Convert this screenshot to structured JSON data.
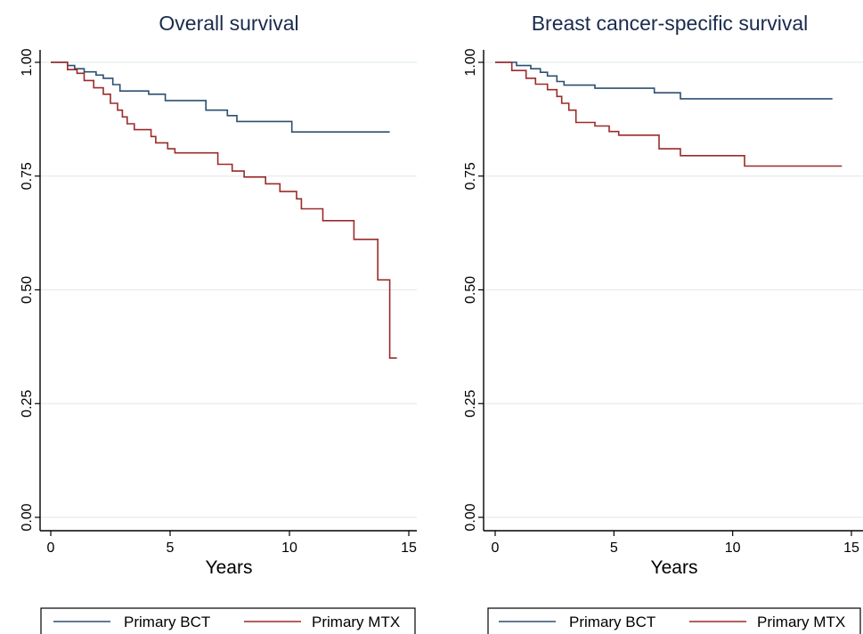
{
  "chart_data": [
    {
      "type": "line",
      "title": "Overall survival",
      "xlabel": "Years",
      "ylabel": "",
      "xlim": [
        0,
        15
      ],
      "ylim": [
        0,
        1
      ],
      "x_ticks": [
        "0",
        "5",
        "10",
        "15"
      ],
      "y_ticks": [
        "0.00",
        "0.25",
        "0.50",
        "0.75",
        "1.00"
      ],
      "grid": true,
      "legend_position": "bottom",
      "series": [
        {
          "name": "Primary BCT",
          "color": "#2c4f70",
          "points": [
            [
              0,
              1.0
            ],
            [
              0.7,
              1.0
            ],
            [
              0.7,
              0.993
            ],
            [
              1.0,
              0.993
            ],
            [
              1.0,
              0.986
            ],
            [
              1.4,
              0.986
            ],
            [
              1.4,
              0.979
            ],
            [
              1.9,
              0.979
            ],
            [
              1.9,
              0.972
            ],
            [
              2.2,
              0.972
            ],
            [
              2.2,
              0.965
            ],
            [
              2.6,
              0.965
            ],
            [
              2.6,
              0.951
            ],
            [
              2.9,
              0.951
            ],
            [
              2.9,
              0.937
            ],
            [
              4.1,
              0.937
            ],
            [
              4.1,
              0.93
            ],
            [
              4.8,
              0.93
            ],
            [
              4.8,
              0.916
            ],
            [
              6.5,
              0.916
            ],
            [
              6.5,
              0.895
            ],
            [
              7.4,
              0.895
            ],
            [
              7.4,
              0.883
            ],
            [
              7.8,
              0.883
            ],
            [
              7.8,
              0.87
            ],
            [
              10.1,
              0.87
            ],
            [
              10.1,
              0.847
            ],
            [
              14.2,
              0.847
            ]
          ]
        },
        {
          "name": "Primary MTX",
          "color": "#9c2a2a",
          "points": [
            [
              0,
              1.0
            ],
            [
              0.7,
              1.0
            ],
            [
              0.7,
              0.984
            ],
            [
              1.1,
              0.984
            ],
            [
              1.1,
              0.976
            ],
            [
              1.4,
              0.976
            ],
            [
              1.4,
              0.96
            ],
            [
              1.8,
              0.96
            ],
            [
              1.8,
              0.944
            ],
            [
              2.2,
              0.944
            ],
            [
              2.2,
              0.93
            ],
            [
              2.5,
              0.93
            ],
            [
              2.5,
              0.91
            ],
            [
              2.8,
              0.91
            ],
            [
              2.8,
              0.895
            ],
            [
              3.0,
              0.895
            ],
            [
              3.0,
              0.88
            ],
            [
              3.2,
              0.88
            ],
            [
              3.2,
              0.865
            ],
            [
              3.5,
              0.865
            ],
            [
              3.5,
              0.852
            ],
            [
              4.2,
              0.852
            ],
            [
              4.2,
              0.837
            ],
            [
              4.4,
              0.837
            ],
            [
              4.4,
              0.823
            ],
            [
              4.9,
              0.823
            ],
            [
              4.9,
              0.81
            ],
            [
              5.2,
              0.81
            ],
            [
              5.2,
              0.801
            ],
            [
              7.0,
              0.801
            ],
            [
              7.0,
              0.776
            ],
            [
              7.6,
              0.776
            ],
            [
              7.6,
              0.761
            ],
            [
              8.1,
              0.761
            ],
            [
              8.1,
              0.748
            ],
            [
              9.0,
              0.748
            ],
            [
              9.0,
              0.733
            ],
            [
              9.6,
              0.733
            ],
            [
              9.6,
              0.716
            ],
            [
              10.3,
              0.716
            ],
            [
              10.3,
              0.7
            ],
            [
              10.5,
              0.7
            ],
            [
              10.5,
              0.678
            ],
            [
              11.4,
              0.678
            ],
            [
              11.4,
              0.652
            ],
            [
              12.7,
              0.652
            ],
            [
              12.7,
              0.611
            ],
            [
              13.7,
              0.611
            ],
            [
              13.7,
              0.522
            ],
            [
              14.2,
              0.522
            ],
            [
              14.2,
              0.35
            ],
            [
              14.5,
              0.35
            ]
          ]
        }
      ]
    },
    {
      "type": "line",
      "title": "Breast cancer-specific survival",
      "xlabel": "Years",
      "ylabel": "",
      "xlim": [
        0,
        15
      ],
      "ylim": [
        0,
        1
      ],
      "x_ticks": [
        "0",
        "5",
        "10",
        "15"
      ],
      "y_ticks": [
        "0.00",
        "0.25",
        "0.50",
        "0.75",
        "1.00"
      ],
      "grid": true,
      "legend_position": "bottom",
      "series": [
        {
          "name": "Primary BCT",
          "color": "#2c4f70",
          "points": [
            [
              0,
              1.0
            ],
            [
              0.9,
              1.0
            ],
            [
              0.9,
              0.993
            ],
            [
              1.5,
              0.993
            ],
            [
              1.5,
              0.986
            ],
            [
              1.9,
              0.986
            ],
            [
              1.9,
              0.978
            ],
            [
              2.2,
              0.978
            ],
            [
              2.2,
              0.97
            ],
            [
              2.6,
              0.97
            ],
            [
              2.6,
              0.958
            ],
            [
              2.9,
              0.958
            ],
            [
              2.9,
              0.95
            ],
            [
              4.2,
              0.95
            ],
            [
              4.2,
              0.943
            ],
            [
              6.7,
              0.943
            ],
            [
              6.7,
              0.933
            ],
            [
              7.8,
              0.933
            ],
            [
              7.8,
              0.92
            ],
            [
              14.2,
              0.92
            ]
          ]
        },
        {
          "name": "Primary MTX",
          "color": "#9c2a2a",
          "points": [
            [
              0,
              1.0
            ],
            [
              0.7,
              1.0
            ],
            [
              0.7,
              0.982
            ],
            [
              1.3,
              0.982
            ],
            [
              1.3,
              0.965
            ],
            [
              1.7,
              0.965
            ],
            [
              1.7,
              0.952
            ],
            [
              2.2,
              0.952
            ],
            [
              2.2,
              0.94
            ],
            [
              2.6,
              0.94
            ],
            [
              2.6,
              0.925
            ],
            [
              2.8,
              0.925
            ],
            [
              2.8,
              0.91
            ],
            [
              3.1,
              0.91
            ],
            [
              3.1,
              0.895
            ],
            [
              3.4,
              0.895
            ],
            [
              3.4,
              0.868
            ],
            [
              4.2,
              0.868
            ],
            [
              4.2,
              0.86
            ],
            [
              4.8,
              0.86
            ],
            [
              4.8,
              0.848
            ],
            [
              5.2,
              0.848
            ],
            [
              5.2,
              0.84
            ],
            [
              6.9,
              0.84
            ],
            [
              6.9,
              0.81
            ],
            [
              7.8,
              0.81
            ],
            [
              7.8,
              0.795
            ],
            [
              10.5,
              0.795
            ],
            [
              10.5,
              0.772
            ],
            [
              14.6,
              0.772
            ]
          ]
        }
      ]
    }
  ]
}
